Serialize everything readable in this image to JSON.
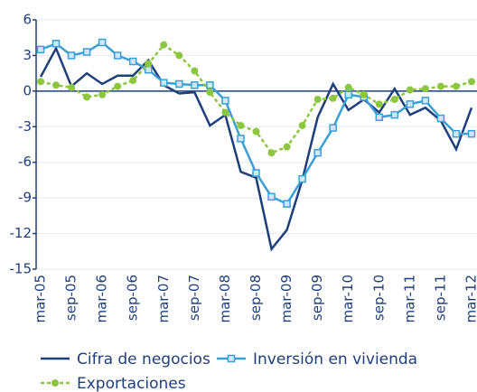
{
  "chart_data": {
    "type": "line",
    "categories": [
      "mar-05",
      null,
      "sep-05",
      null,
      "mar-06",
      null,
      "sep-06",
      null,
      "mar-07",
      null,
      "sep-07",
      null,
      "mar-08",
      null,
      "sep-08",
      null,
      "mar-09",
      null,
      "sep-09",
      null,
      "mar-10",
      null,
      "sep-10",
      null,
      "mar-11",
      null,
      "sep-11",
      null,
      "mar-12"
    ],
    "series": [
      {
        "name": "Cifra de negocios",
        "color": "#1f3f7a",
        "marker": "none",
        "dashed": false,
        "values": [
          1.2,
          3.6,
          0.4,
          1.5,
          0.6,
          1.3,
          1.3,
          2.6,
          0.5,
          -0.2,
          -0.1,
          -2.9,
          -2.0,
          -6.8,
          -7.3,
          -13.3,
          -11.7,
          -7.5,
          -2.2,
          0.6,
          -1.6,
          -0.7,
          -1.8,
          0.2,
          -2.0,
          -1.4,
          -2.5,
          -4.9,
          -1.4
        ]
      },
      {
        "name": "Inversión en vivienda",
        "color": "#3b9fd6",
        "marker": "square",
        "dashed": false,
        "values": [
          3.5,
          4.0,
          3.0,
          3.3,
          4.1,
          3.0,
          2.5,
          1.8,
          0.7,
          0.6,
          0.5,
          0.5,
          -0.8,
          -4.0,
          -6.9,
          -8.9,
          -9.5,
          -7.4,
          -5.2,
          -3.1,
          -0.3,
          -0.5,
          -2.2,
          -2.0,
          -1.1,
          -0.8,
          -2.3,
          -3.6,
          -3.6
        ]
      },
      {
        "name": "Exportaciones",
        "color": "#8dc63f",
        "marker": "circle",
        "dashed": true,
        "values": [
          0.8,
          0.5,
          0.3,
          -0.5,
          -0.3,
          0.4,
          0.9,
          2.3,
          3.9,
          3.0,
          1.7,
          -0.1,
          -1.8,
          -2.9,
          -3.4,
          -5.2,
          -4.7,
          -2.9,
          -0.7,
          -0.6,
          0.3,
          -0.3,
          -1.1,
          -0.7,
          0.1,
          0.2,
          0.4,
          0.4,
          0.8
        ]
      }
    ],
    "ylim": [
      -15,
      6
    ],
    "yticks": [
      -15,
      -12,
      -9,
      -6,
      -3,
      0,
      3,
      6
    ],
    "grid": true
  }
}
